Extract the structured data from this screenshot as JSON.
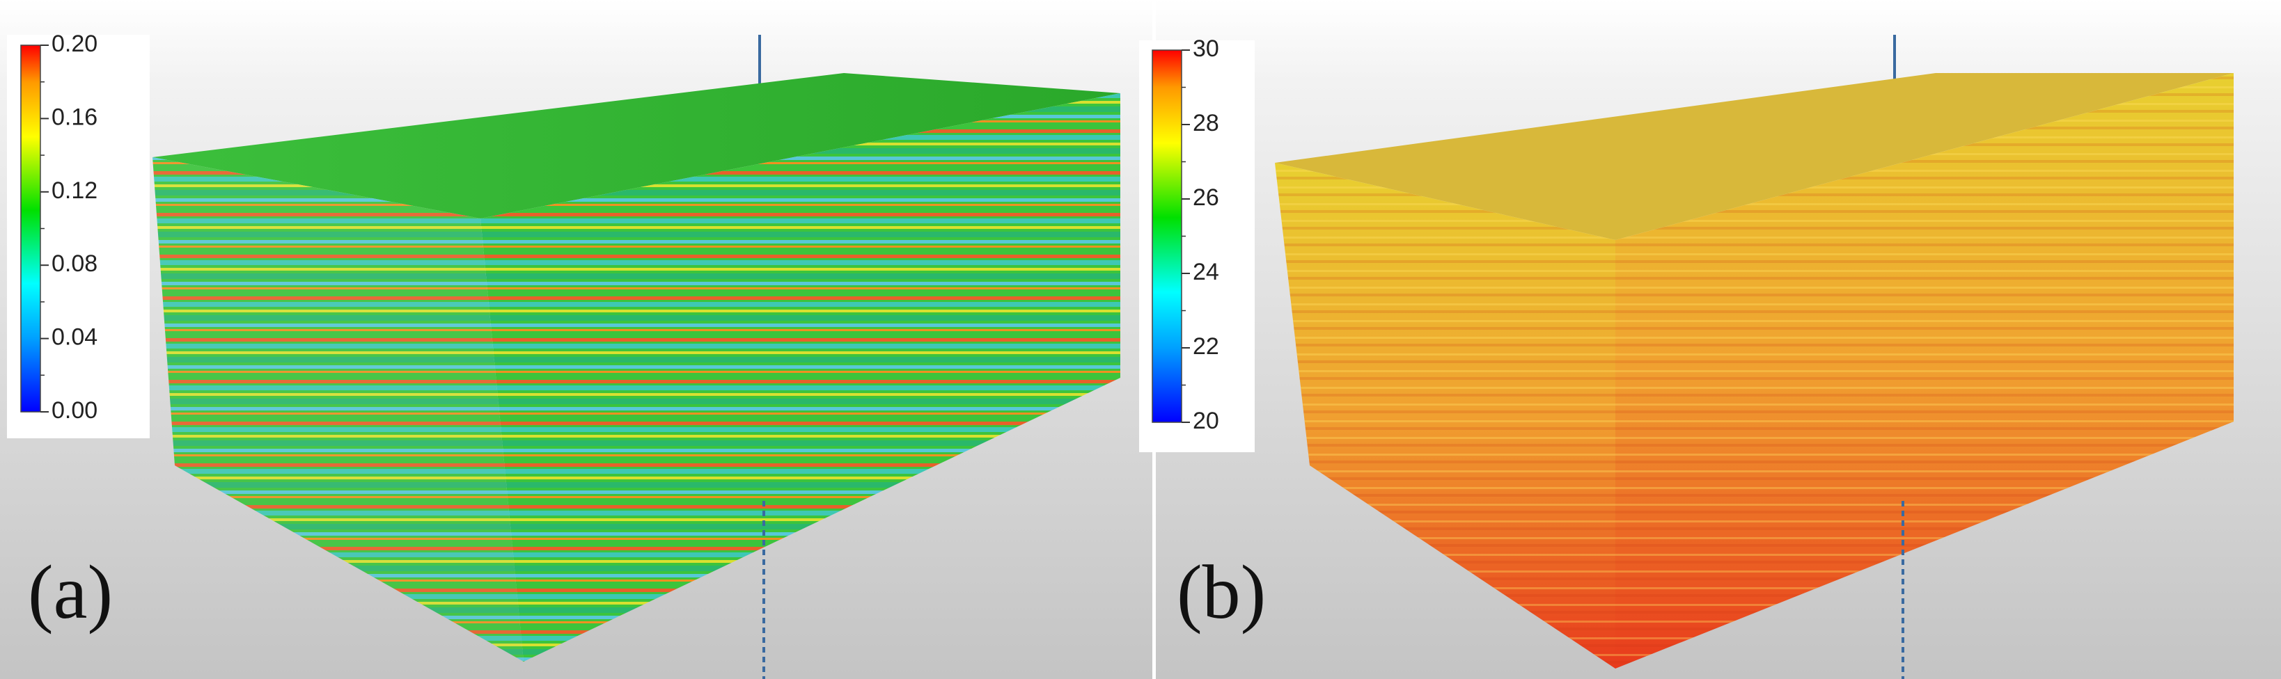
{
  "panels": [
    {
      "label": "(a)",
      "colorbar": {
        "ticks": [
          "0.00",
          "0.04",
          "0.08",
          "0.12",
          "0.16",
          "0.20"
        ]
      }
    },
    {
      "label": "(b)",
      "colorbar": {
        "ticks": [
          "20",
          "22",
          "24",
          "26",
          "28",
          "30"
        ]
      }
    }
  ]
}
